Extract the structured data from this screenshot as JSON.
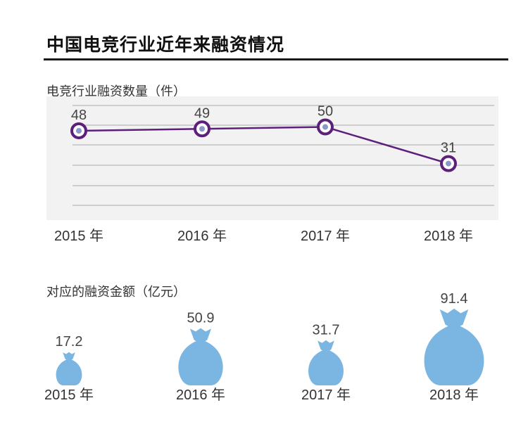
{
  "page": {
    "title": "中国电竞行业近年来融资情况"
  },
  "chart_data": [
    {
      "type": "line",
      "title": "电竞行业融资数量（件）",
      "categories": [
        "2015 年",
        "2016 年",
        "2017 年",
        "2018 年"
      ],
      "values": [
        48,
        49,
        50,
        31
      ],
      "data_labels": [
        "48",
        "49",
        "50",
        "31"
      ],
      "grid": true,
      "colors": {
        "line": "#5c1f7a",
        "marker_ring": "#5c1f7a",
        "marker_center": "#8b97c4",
        "plot_bg": "#f2f2f2"
      }
    },
    {
      "type": "bar",
      "title": "对应的融资金额（亿元）",
      "categories": [
        "2015 年",
        "2016 年",
        "2017 年",
        "2018 年"
      ],
      "values": [
        17.2,
        50.9,
        31.7,
        91.4
      ],
      "data_labels": [
        "17.2",
        "50.9",
        "31.7",
        "91.4"
      ],
      "marker_icon": "money-bag-icon",
      "colors": {
        "bag": "#7bb6e3"
      }
    }
  ]
}
